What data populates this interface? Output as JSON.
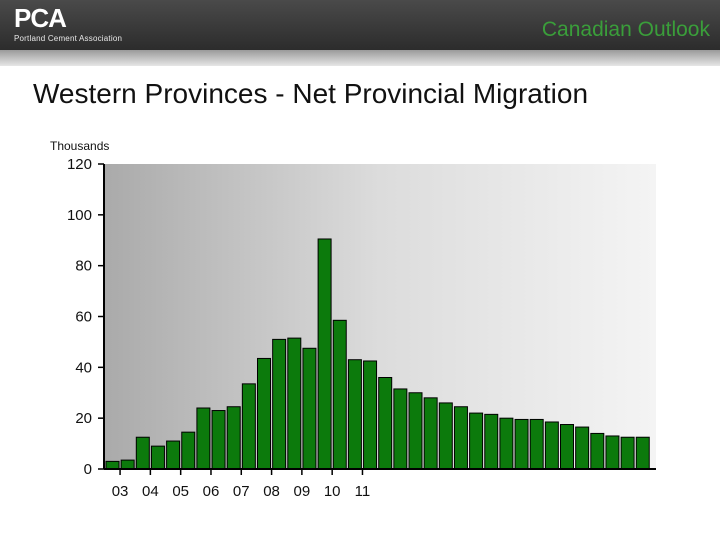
{
  "header": {
    "logo_text": "PCA",
    "logo_subtext": "Portland Cement Association",
    "section_title": "Canadian Outlook"
  },
  "slide": {
    "title": "Western Provinces - Net Provincial Migration"
  },
  "chart_data": {
    "type": "bar",
    "title": "Western Provinces - Net Provincial Migration",
    "ylabel": "Thousands",
    "xlabel": "",
    "ylim": [
      0,
      120
    ],
    "yticks": [
      0,
      20,
      40,
      60,
      80,
      100,
      120
    ],
    "x_tick_labels": [
      {
        "label": "03",
        "index": 0.5
      },
      {
        "label": "04",
        "index": 2.5
      },
      {
        "label": "05",
        "index": 4.5
      },
      {
        "label": "06",
        "index": 6.5
      },
      {
        "label": "07",
        "index": 8.5
      },
      {
        "label": "08",
        "index": 10.5
      },
      {
        "label": "09",
        "index": 12.5
      },
      {
        "label": "10",
        "index": 14.5
      },
      {
        "label": "11",
        "index": 16.5
      }
    ],
    "values": [
      3,
      3.5,
      12.5,
      9,
      11,
      14.5,
      24,
      23,
      24.5,
      33.5,
      43.5,
      51,
      51.5,
      47.5,
      90.5,
      58.5,
      43,
      42.5,
      36,
      31.5,
      30,
      28,
      26,
      24.5,
      22,
      21.5,
      20,
      19.5,
      19.5,
      18.5,
      17.5,
      16.5,
      14,
      13,
      12.5,
      12.5
    ],
    "bar_color": "#0c7a0c",
    "plot_background": "#c8c8c8",
    "grid": false
  }
}
